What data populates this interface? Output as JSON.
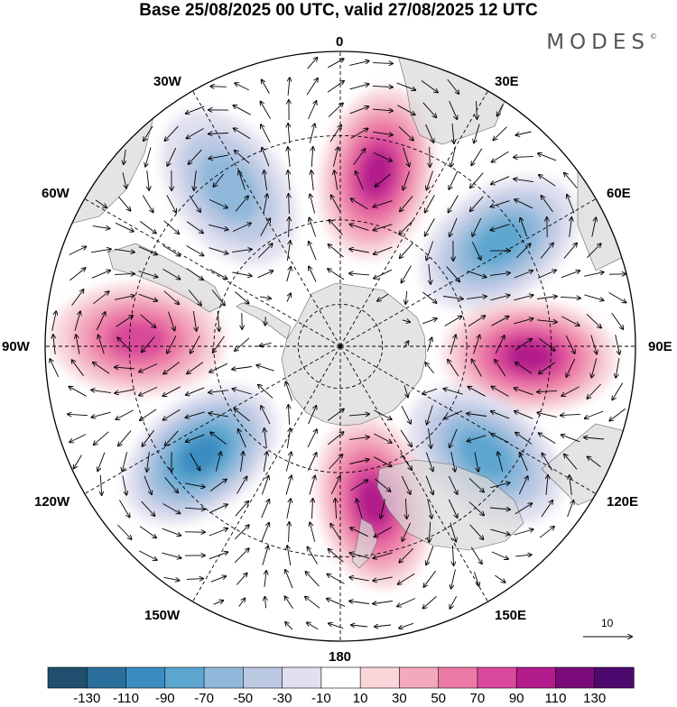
{
  "title": "Base 25/08/2025 00 UTC, valid 27/08/2025 12 UTC",
  "brand": "MODES",
  "brand_mark": "©",
  "longitude_labels": {
    "top": "0",
    "top_right": "30E",
    "upper_right": "60E",
    "right": "90E",
    "lower_right": "120E",
    "bottom_right": "150E",
    "bottom": "180",
    "bottom_left": "150W",
    "lower_left": "120W",
    "left": "90W",
    "upper_left": "60W",
    "top_left": "30W"
  },
  "reference_vector": "10",
  "colorbar": {
    "labels": [
      "-130",
      "-110",
      "-90",
      "-70",
      "-50",
      "-30",
      "-10",
      "10",
      "30",
      "50",
      "70",
      "90",
      "110",
      "130"
    ],
    "colors": [
      "#1f4e6e",
      "#2a6f9b",
      "#3b8cc0",
      "#5da6cf",
      "#8fb8da",
      "#bcc9e3",
      "#e0e0ef",
      "#ffffff",
      "#f8d6da",
      "#f3a9bd",
      "#ec7aa6",
      "#d9489a",
      "#b31c8c",
      "#7a0a7a",
      "#4d0a6e"
    ]
  },
  "anomalies": [
    {
      "sign": "positive",
      "lon": 12,
      "lat": -48,
      "level": 5
    },
    {
      "sign": "negative",
      "lon": 57,
      "lat": -45,
      "level": 4
    },
    {
      "sign": "positive",
      "lon": 93,
      "lat": -45,
      "level": 5
    },
    {
      "sign": "negative",
      "lon": 127,
      "lat": -47,
      "level": 4
    },
    {
      "sign": "positive",
      "lon": 168,
      "lat": -52,
      "level": 5
    },
    {
      "sign": "negative",
      "lon": -128,
      "lat": -48,
      "level": 5
    },
    {
      "sign": "positive",
      "lon": -88,
      "lat": -42,
      "level": 4
    },
    {
      "sign": "negative",
      "lon": -35,
      "lat": -44,
      "level": 3
    }
  ]
}
